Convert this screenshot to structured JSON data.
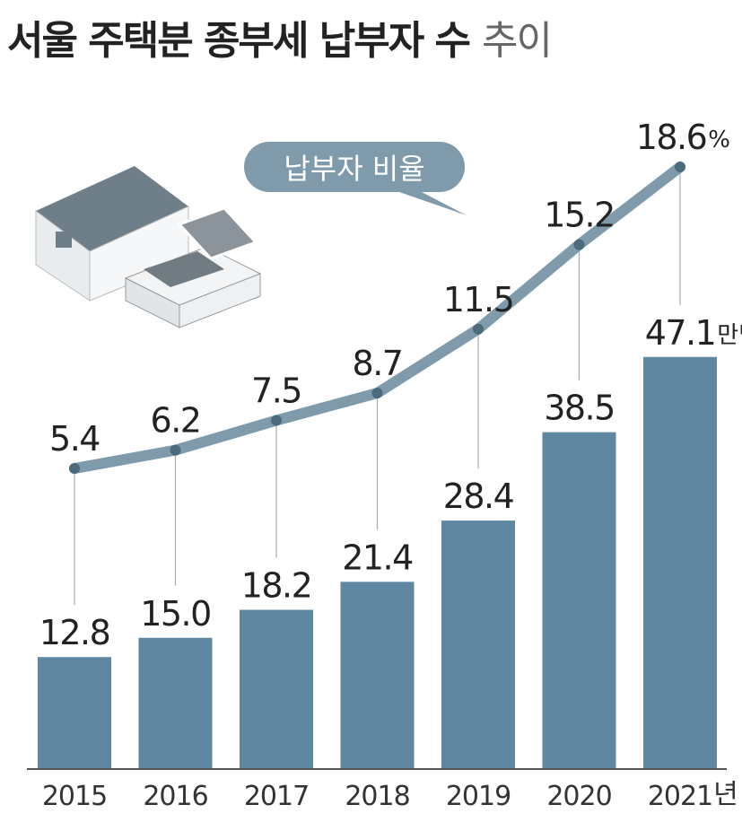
{
  "chart_data": {
    "type": "bar-line",
    "title": "서울 주택분 종부세 납부자 수",
    "title_tail": "추이",
    "categories": [
      "2015",
      "2016",
      "2017",
      "2018",
      "2019",
      "2020",
      "2021"
    ],
    "x_unit": "년",
    "series": [
      {
        "name": "납부자",
        "type": "bar",
        "color": "#5f87a1",
        "values": [
          12.8,
          15.0,
          18.2,
          21.4,
          28.4,
          38.5,
          47.1
        ],
        "value_labels": [
          "12.8",
          "15.0",
          "18.2",
          "21.4",
          "28.4",
          "38.5",
          "47.1"
        ],
        "unit": "만명"
      },
      {
        "name": "납부자 비율",
        "type": "line",
        "color": "#7f9bab",
        "marker_color": "#4b6a7c",
        "values": [
          5.4,
          6.2,
          7.5,
          8.7,
          11.5,
          15.2,
          18.6
        ],
        "unit": "%"
      }
    ]
  }
}
